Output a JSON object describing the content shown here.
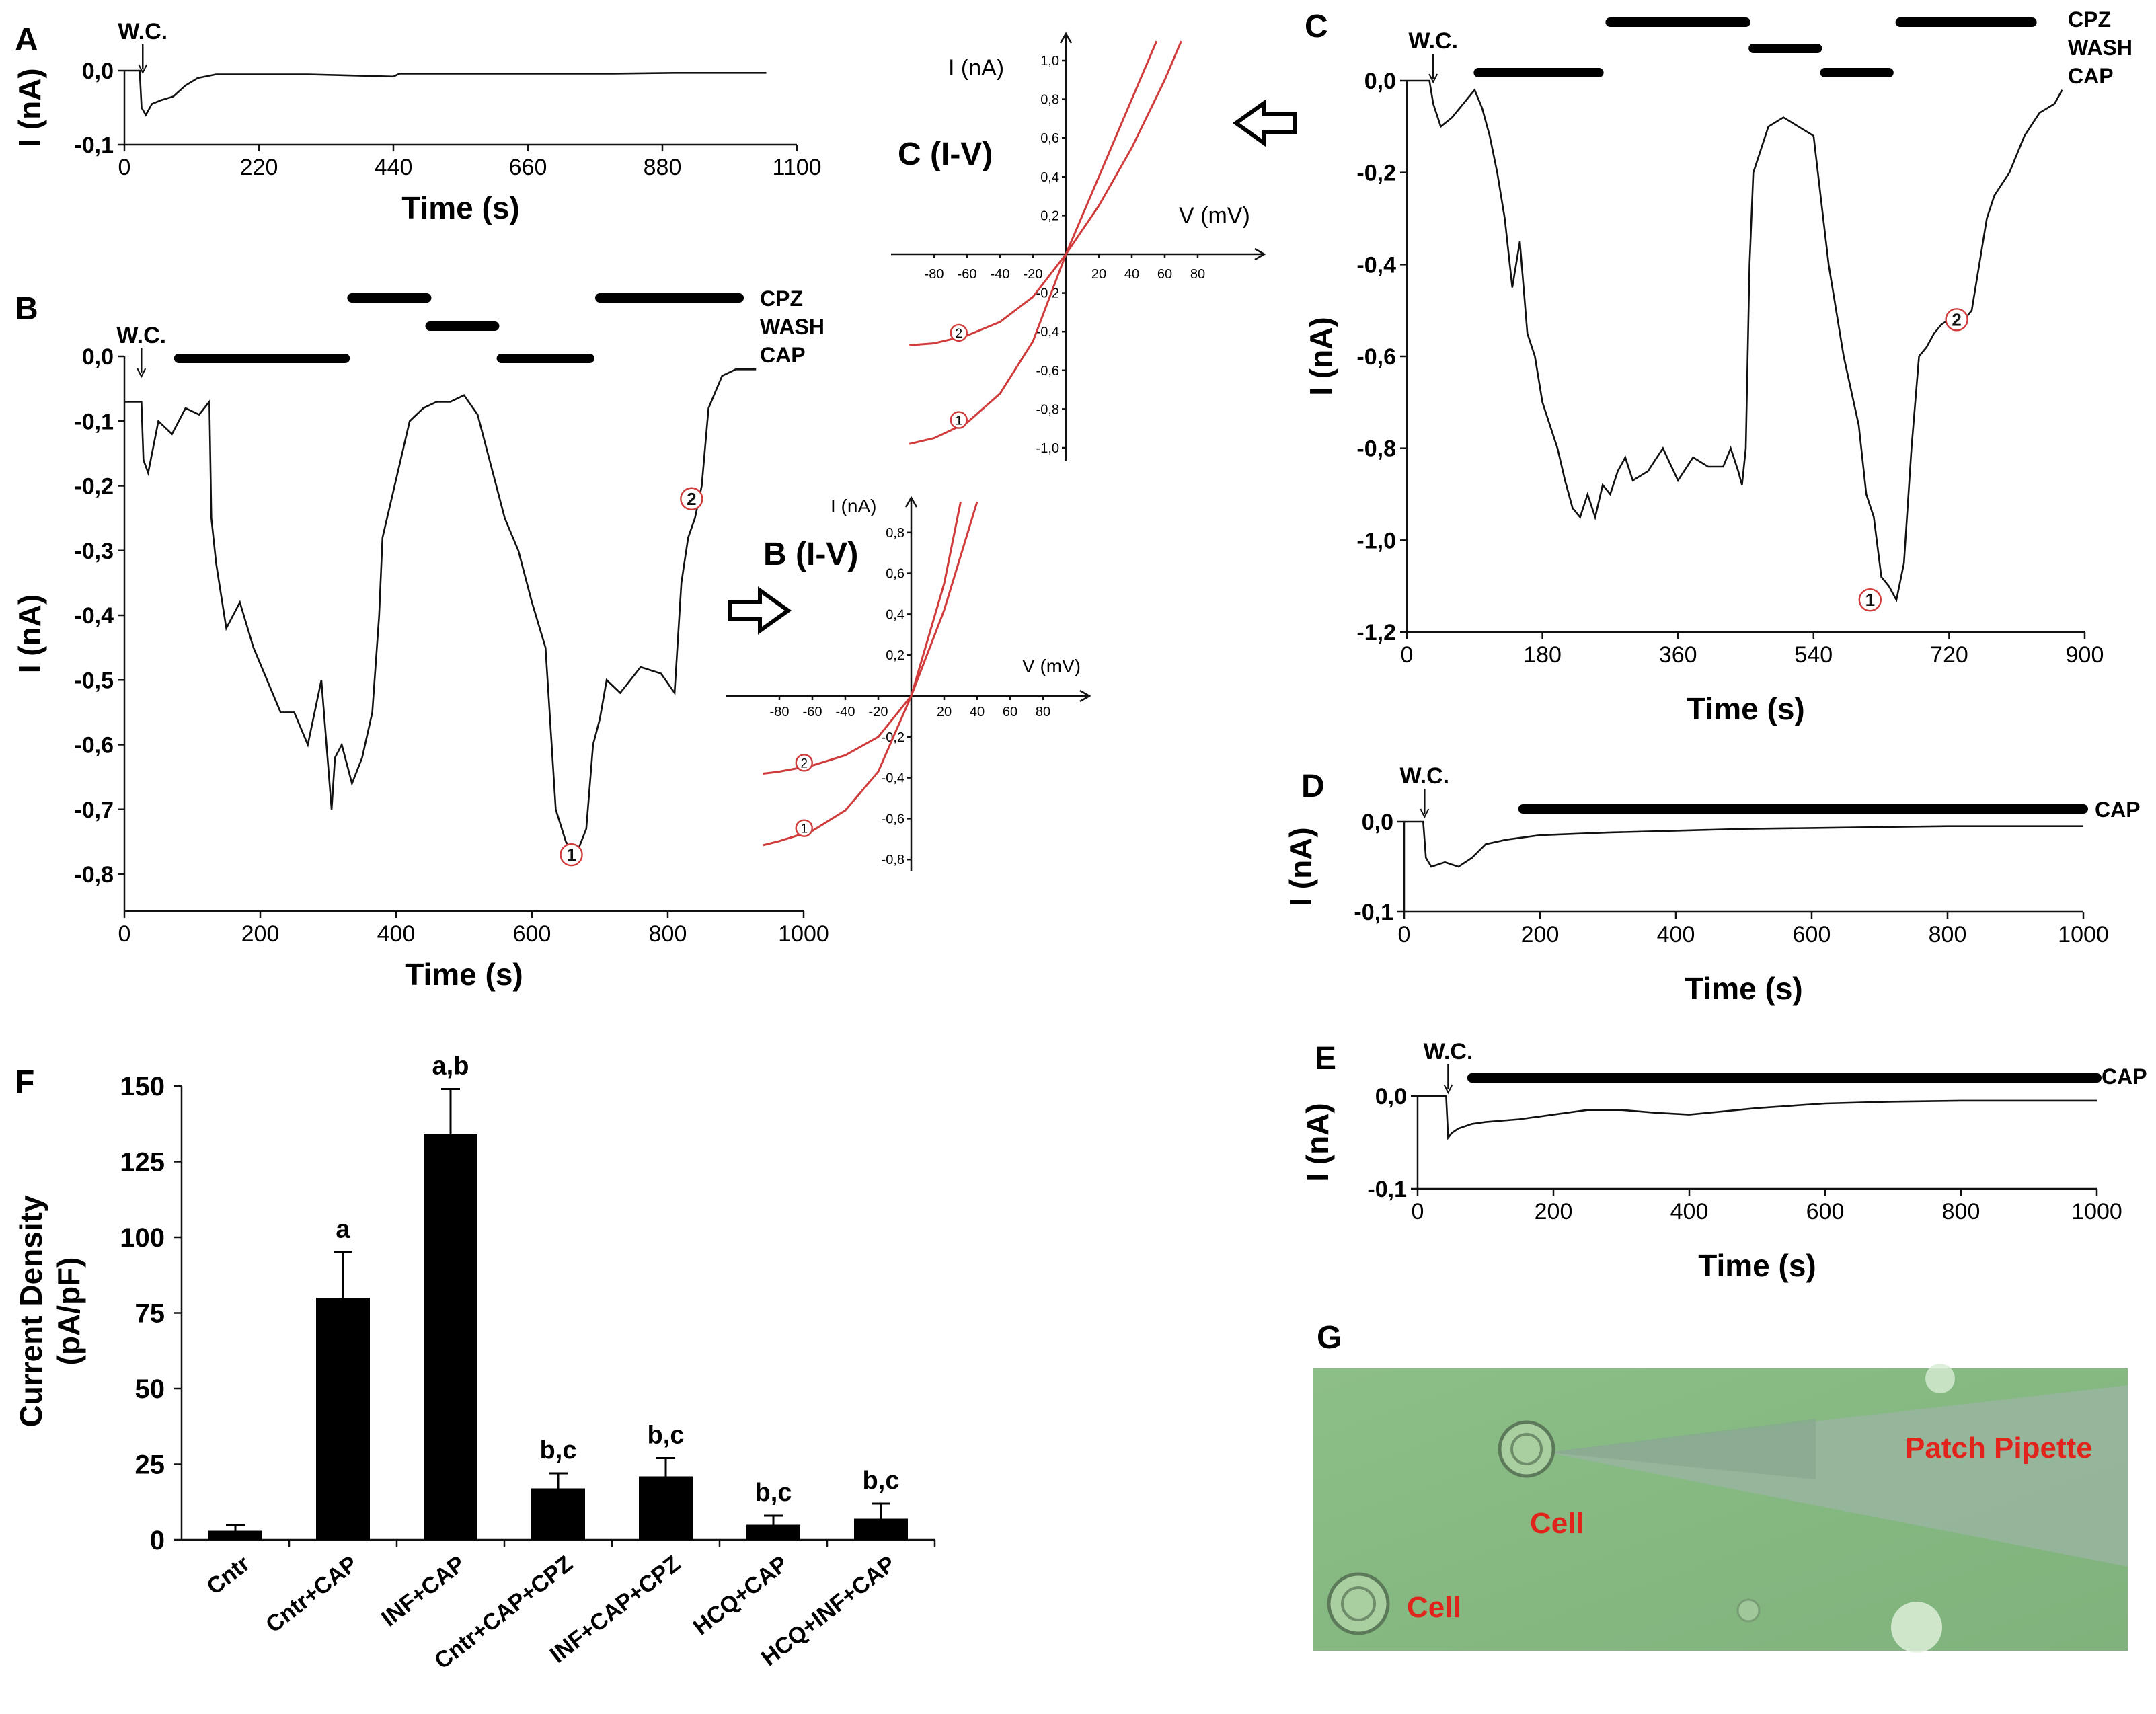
{
  "chart_data": [
    {
      "panel": "A",
      "type": "line",
      "ylabel": "I (nA)",
      "xlabel": "Time (s)",
      "xticks": [
        "0",
        "220",
        "440",
        "660",
        "880",
        "1100"
      ],
      "yticks": [
        "0,0",
        "-0,1"
      ],
      "xlim": [
        0,
        1100
      ],
      "ylim": [
        -0.1,
        0.02
      ],
      "marker": "W.C.",
      "marker_x": 30,
      "x": [
        0,
        25,
        28,
        35,
        45,
        60,
        80,
        100,
        120,
        150,
        200,
        300,
        440,
        450,
        500,
        600,
        700,
        800,
        900,
        1050
      ],
      "y": [
        0.0,
        0.0,
        -0.05,
        -0.06,
        -0.045,
        -0.04,
        -0.035,
        -0.02,
        -0.01,
        -0.005,
        -0.005,
        -0.005,
        -0.008,
        -0.004,
        -0.004,
        -0.004,
        -0.004,
        -0.004,
        -0.003,
        -0.003
      ]
    },
    {
      "panel": "B",
      "type": "line",
      "ylabel": "I (nA)",
      "xlabel": "Time (s)",
      "xticks": [
        "0",
        "200",
        "400",
        "600",
        "800",
        "1000"
      ],
      "yticks": [
        "0,0",
        "-0,1",
        "-0,2",
        "-0,3",
        "-0,4",
        "-0,5",
        "-0,6",
        "-0,7",
        "-0,8"
      ],
      "xlim": [
        0,
        1000
      ],
      "ylim": [
        -0.85,
        0.0
      ],
      "marker": "W.C.",
      "marker_x": 25,
      "legend": [
        "CPZ",
        "WASH",
        "CAP"
      ],
      "bars": [
        {
          "start": 80,
          "end": 325,
          "level": "CAP"
        },
        {
          "start": 335,
          "end": 445,
          "level": "CPZ"
        },
        {
          "start": 450,
          "end": 545,
          "level": "WASH"
        },
        {
          "start": 555,
          "end": 685,
          "level": "CAP"
        },
        {
          "start": 700,
          "end": 905,
          "level": "CPZ"
        }
      ],
      "points": [
        {
          "label": "1",
          "x": 658,
          "y": -0.77
        },
        {
          "label": "2",
          "x": 835,
          "y": -0.22
        }
      ],
      "x": [
        0,
        25,
        28,
        35,
        50,
        70,
        90,
        110,
        125,
        128,
        135,
        150,
        170,
        190,
        210,
        230,
        250,
        270,
        290,
        305,
        310,
        320,
        335,
        350,
        365,
        375,
        380,
        400,
        420,
        440,
        460,
        480,
        500,
        520,
        540,
        560,
        580,
        600,
        620,
        635,
        650,
        665,
        680,
        690,
        700,
        710,
        730,
        760,
        790,
        810,
        820,
        830,
        840,
        850,
        860,
        880,
        900,
        930
      ],
      "y": [
        -0.07,
        -0.07,
        -0.16,
        -0.18,
        -0.1,
        -0.12,
        -0.08,
        -0.09,
        -0.07,
        -0.25,
        -0.32,
        -0.42,
        -0.38,
        -0.45,
        -0.5,
        -0.55,
        -0.55,
        -0.6,
        -0.5,
        -0.7,
        -0.62,
        -0.6,
        -0.66,
        -0.62,
        -0.55,
        -0.4,
        -0.28,
        -0.19,
        -0.1,
        -0.08,
        -0.07,
        -0.07,
        -0.06,
        -0.09,
        -0.17,
        -0.25,
        -0.3,
        -0.38,
        -0.45,
        -0.7,
        -0.75,
        -0.77,
        -0.73,
        -0.6,
        -0.56,
        -0.5,
        -0.52,
        -0.48,
        -0.49,
        -0.52,
        -0.35,
        -0.28,
        -0.25,
        -0.2,
        -0.08,
        -0.03,
        -0.02,
        -0.02
      ]
    },
    {
      "panel": "C",
      "type": "line",
      "ylabel": "I (nA)",
      "xlabel": "Time (s)",
      "xticks": [
        "0",
        "180",
        "360",
        "540",
        "720",
        "900"
      ],
      "yticks": [
        "0,0",
        "-0,2",
        "-0,4",
        "-0,6",
        "-0,8",
        "-1,0",
        "-1,2"
      ],
      "xlim": [
        0,
        900
      ],
      "ylim": [
        -1.2,
        0.05
      ],
      "marker": "W.C.",
      "marker_x": 35,
      "legend": [
        "CPZ",
        "WASH",
        "CAP"
      ],
      "bars": [
        {
          "start": 95,
          "end": 255,
          "level": "CAP"
        },
        {
          "start": 270,
          "end": 450,
          "level": "CPZ"
        },
        {
          "start": 460,
          "end": 545,
          "level": "WASH"
        },
        {
          "start": 555,
          "end": 640,
          "level": "CAP"
        },
        {
          "start": 655,
          "end": 830,
          "level": "CPZ"
        }
      ],
      "points": [
        {
          "label": "1",
          "x": 615,
          "y": -1.13
        },
        {
          "label": "2",
          "x": 730,
          "y": -0.52
        }
      ],
      "x": [
        0,
        30,
        35,
        45,
        60,
        80,
        90,
        100,
        110,
        120,
        130,
        140,
        150,
        160,
        170,
        180,
        190,
        200,
        210,
        220,
        230,
        240,
        250,
        260,
        270,
        280,
        290,
        300,
        320,
        340,
        360,
        380,
        400,
        420,
        430,
        440,
        445,
        450,
        455,
        460,
        480,
        500,
        520,
        540,
        560,
        580,
        600,
        610,
        620,
        630,
        640,
        650,
        660,
        670,
        680,
        690,
        700,
        710,
        720,
        730,
        740,
        750,
        760,
        770,
        780,
        800,
        820,
        840,
        860,
        870
      ],
      "y": [
        0.0,
        0.0,
        -0.05,
        -0.1,
        -0.08,
        -0.04,
        -0.02,
        -0.06,
        -0.12,
        -0.2,
        -0.3,
        -0.45,
        -0.35,
        -0.55,
        -0.6,
        -0.7,
        -0.75,
        -0.8,
        -0.87,
        -0.93,
        -0.95,
        -0.9,
        -0.95,
        -0.88,
        -0.9,
        -0.85,
        -0.82,
        -0.87,
        -0.85,
        -0.8,
        -0.87,
        -0.82,
        -0.84,
        -0.84,
        -0.8,
        -0.85,
        -0.88,
        -0.8,
        -0.4,
        -0.2,
        -0.1,
        -0.08,
        -0.1,
        -0.12,
        -0.4,
        -0.6,
        -0.75,
        -0.9,
        -0.95,
        -1.08,
        -1.1,
        -1.13,
        -1.05,
        -0.8,
        -0.6,
        -0.58,
        -0.55,
        -0.53,
        -0.52,
        -0.53,
        -0.52,
        -0.5,
        -0.4,
        -0.3,
        -0.25,
        -0.2,
        -0.12,
        -0.07,
        -0.05,
        -0.02
      ]
    },
    {
      "panel": "D",
      "type": "line",
      "ylabel": "I (nA)",
      "xlabel": "Time (s)",
      "xticks": [
        "0",
        "200",
        "400",
        "600",
        "800",
        "1000"
      ],
      "yticks": [
        "0,0",
        "-0,1"
      ],
      "xlim": [
        0,
        1000
      ],
      "ylim": [
        -0.1,
        0.02
      ],
      "marker": "W.C.",
      "marker_x": 30,
      "legend": [
        "CAP"
      ],
      "bars": [
        {
          "start": 175,
          "end": 1000,
          "level": "CAP"
        }
      ],
      "x": [
        0,
        28,
        32,
        40,
        60,
        80,
        100,
        120,
        150,
        200,
        300,
        400,
        500,
        600,
        700,
        800,
        900,
        1000
      ],
      "y": [
        0.0,
        0.0,
        -0.04,
        -0.05,
        -0.045,
        -0.05,
        -0.04,
        -0.025,
        -0.02,
        -0.015,
        -0.012,
        -0.01,
        -0.008,
        -0.007,
        -0.006,
        -0.005,
        -0.005,
        -0.005
      ]
    },
    {
      "panel": "E",
      "type": "line",
      "ylabel": "I (nA)",
      "xlabel": "Time (s)",
      "xticks": [
        "0",
        "200",
        "400",
        "600",
        "800",
        "1000"
      ],
      "yticks": [
        "0,0",
        "-0,1"
      ],
      "xlim": [
        0,
        1000
      ],
      "ylim": [
        -0.1,
        0.02
      ],
      "marker": "W.C.",
      "marker_x": 45,
      "legend": [
        "CAP"
      ],
      "bars": [
        {
          "start": 80,
          "end": 1000,
          "level": "CAP"
        }
      ],
      "x": [
        0,
        42,
        45,
        50,
        60,
        80,
        100,
        150,
        200,
        250,
        300,
        350,
        400,
        500,
        600,
        700,
        800,
        900,
        1000
      ],
      "y": [
        0.0,
        0.0,
        -0.045,
        -0.04,
        -0.035,
        -0.03,
        -0.028,
        -0.025,
        -0.02,
        -0.015,
        -0.015,
        -0.018,
        -0.02,
        -0.013,
        -0.008,
        -0.006,
        -0.005,
        -0.005,
        -0.005
      ]
    },
    {
      "panel": "F",
      "type": "bar",
      "ylabel": "Current Density (pA/pF)",
      "categories": [
        "Cntr",
        "Cntr+CAP",
        "INF+CAP",
        "Cntr+CAP+CPZ",
        "INF+CAP+CPZ",
        "HCQ+CAP",
        "HCQ+INF+CAP"
      ],
      "values": [
        3,
        80,
        134,
        17,
        21,
        5,
        7
      ],
      "errors": [
        2,
        15,
        15,
        5,
        6,
        3,
        5
      ],
      "labels": [
        "",
        "a",
        "a,b",
        "b,c",
        "b,c",
        "b,c",
        "b,c"
      ],
      "ylim": [
        0,
        150
      ],
      "yticks": [
        "0",
        "25",
        "50",
        "75",
        "100",
        "125",
        "150"
      ]
    },
    {
      "panel": "B (I-V)",
      "type": "line",
      "xlabel": "V (mV)",
      "ylabel": "I (nA)",
      "xticks": [
        "-80",
        "-60",
        "-40",
        "-20",
        "20",
        "40",
        "60",
        "80"
      ],
      "yticks": [
        "0,8",
        "0,6",
        "0,4",
        "0,2",
        "-0,2",
        "-0,4",
        "-0,6",
        "-0,8"
      ],
      "series": [
        {
          "name": "1",
          "v": [
            -90,
            -80,
            -60,
            -40,
            -20,
            0,
            20,
            30
          ],
          "i": [
            -0.73,
            -0.71,
            -0.66,
            -0.56,
            -0.37,
            0,
            0.55,
            0.95
          ]
        },
        {
          "name": "2",
          "v": [
            -90,
            -80,
            -60,
            -40,
            -20,
            0,
            20,
            40
          ],
          "i": [
            -0.38,
            -0.37,
            -0.34,
            -0.29,
            -0.2,
            0,
            0.42,
            0.95
          ]
        }
      ]
    },
    {
      "panel": "C (I-V)",
      "type": "line",
      "xlabel": "V (mV)",
      "ylabel": "I (nA)",
      "xticks": [
        "-80",
        "-60",
        "-40",
        "-20",
        "20",
        "40",
        "60",
        "80"
      ],
      "yticks": [
        "1,0",
        "0,8",
        "0,6",
        "0,4",
        "0,2",
        "-0,2",
        "-0,4",
        "-0,6",
        "-0,8",
        "-1,0"
      ],
      "series": [
        {
          "name": "1",
          "v": [
            -95,
            -80,
            -60,
            -40,
            -20,
            0,
            20,
            40,
            55
          ],
          "i": [
            -0.98,
            -0.95,
            -0.87,
            -0.72,
            -0.45,
            0,
            0.4,
            0.8,
            1.1
          ]
        },
        {
          "name": "2",
          "v": [
            -95,
            -80,
            -60,
            -40,
            -20,
            0,
            20,
            40,
            60,
            70
          ],
          "i": [
            -0.47,
            -0.46,
            -0.42,
            -0.35,
            -0.22,
            0,
            0.25,
            0.55,
            0.9,
            1.1
          ]
        }
      ]
    }
  ],
  "labels": {
    "a": "A",
    "b": "B",
    "c": "C",
    "d": "D",
    "e": "E",
    "f": "F",
    "g": "G",
    "iv_b": "B (I-V)",
    "iv_c": "C (I-V)",
    "cell1": "Cell",
    "cell2": "Cell",
    "pipette": "Patch Pipette"
  },
  "colors": {
    "iv_curve": "#d03b3b",
    "annotation": "#e0241b",
    "micro_bg": "#8fbf8a"
  }
}
